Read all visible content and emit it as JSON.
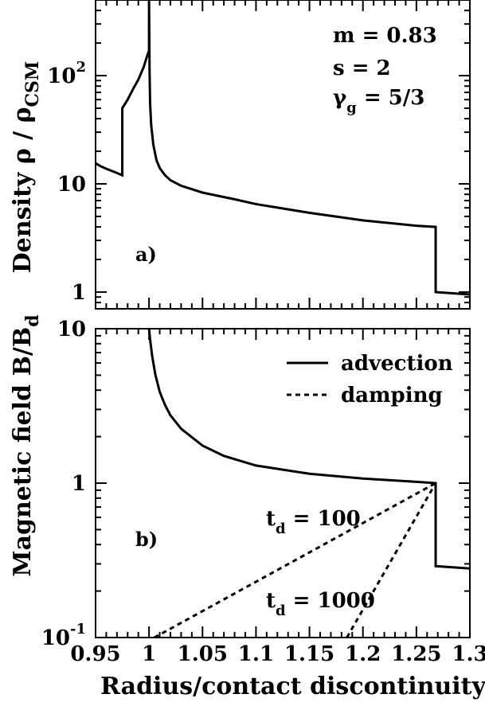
{
  "chart_data": [
    {
      "panel": "a",
      "type": "line",
      "ylabel_main": "Density ρ / ρ",
      "ylabel_sub": "CSM",
      "xlim": [
        0.95,
        1.3
      ],
      "ylim": [
        0.7,
        500
      ],
      "yscale": "log",
      "y_ticks": [
        {
          "value": 1,
          "base": "1",
          "exp": ""
        },
        {
          "value": 10,
          "base": "10",
          "exp": ""
        },
        {
          "value": 100,
          "base": "10",
          "exp": "2"
        }
      ],
      "annotations": {
        "m": "m = 0.83",
        "s": "s = 2",
        "gamma_base": "γ",
        "gamma_sub": "g",
        "gamma_rest": " = 5/3"
      },
      "panel_label": "a)",
      "series": [
        {
          "style": "solid",
          "points": [
            [
              0.95,
              15.5
            ],
            [
              0.955,
              14.5
            ],
            [
              0.96,
              13.8
            ],
            [
              0.965,
              13.2
            ],
            [
              0.97,
              12.6
            ],
            [
              0.975,
              12.0
            ],
            [
              0.975,
              50
            ],
            [
              0.98,
              60
            ],
            [
              0.985,
              75
            ],
            [
              0.99,
              92
            ],
            [
              0.995,
              120
            ],
            [
              0.998,
              150
            ],
            [
              1.0,
              170
            ],
            [
              1.0,
              500
            ],
            [
              1.0005,
              110
            ],
            [
              1.001,
              55
            ],
            [
              1.002,
              35
            ],
            [
              1.004,
              23
            ],
            [
              1.007,
              16.5
            ],
            [
              1.01,
              14
            ],
            [
              1.015,
              12
            ],
            [
              1.02,
              10.8
            ],
            [
              1.03,
              9.6
            ],
            [
              1.05,
              8.3
            ],
            [
              1.08,
              7.2
            ],
            [
              1.1,
              6.5
            ],
            [
              1.15,
              5.4
            ],
            [
              1.2,
              4.6
            ],
            [
              1.25,
              4.1
            ],
            [
              1.268,
              4.0
            ],
            [
              1.268,
              1.0
            ],
            [
              1.3,
              0.95
            ]
          ]
        }
      ]
    },
    {
      "panel": "b",
      "type": "line",
      "xlabel": "Radius/contact discontinuity",
      "ylabel_main": "Magnetic field B/B",
      "ylabel_sub": "d",
      "xlim": [
        0.95,
        1.3
      ],
      "ylim": [
        0.1,
        10
      ],
      "yscale": "log",
      "x_ticks": [
        "0.95",
        "1",
        "1.05",
        "1.1",
        "1.15",
        "1.2",
        "1.25",
        "1.3"
      ],
      "y_ticks": [
        {
          "value": 0.1,
          "base": "10",
          "exp": "-1"
        },
        {
          "value": 1,
          "base": "1",
          "exp": ""
        },
        {
          "value": 10,
          "base": "10",
          "exp": ""
        }
      ],
      "legend": {
        "advection": "advection",
        "damping": "damping"
      },
      "legend_placement": "top-right",
      "annotations": {
        "td100_base": "t",
        "td100_sub": "d",
        "td100_rest": " = 100",
        "td1000_base": "t",
        "td1000_sub": "d",
        "td1000_rest": " = 1000"
      },
      "panel_label": "b)",
      "series": [
        {
          "name": "advection",
          "style": "solid",
          "points": [
            [
              1.0,
              10
            ],
            [
              1.001,
              8.5
            ],
            [
              1.003,
              6.6
            ],
            [
              1.006,
              5.0
            ],
            [
              1.01,
              3.9
            ],
            [
              1.015,
              3.2
            ],
            [
              1.02,
              2.75
            ],
            [
              1.03,
              2.25
            ],
            [
              1.05,
              1.75
            ],
            [
              1.07,
              1.5
            ],
            [
              1.1,
              1.3
            ],
            [
              1.15,
              1.15
            ],
            [
              1.2,
              1.07
            ],
            [
              1.25,
              1.02
            ],
            [
              1.268,
              1.0
            ],
            [
              1.268,
              0.29
            ],
            [
              1.3,
              0.28
            ]
          ]
        },
        {
          "name": "damping",
          "label": "t_d = 100",
          "style": "dashed",
          "points": [
            [
              1.005,
              0.1
            ],
            [
              1.268,
              1.0
            ]
          ]
        },
        {
          "name": "damping",
          "label": "t_d = 1000",
          "style": "dashed",
          "points": [
            [
              1.185,
              0.1
            ],
            [
              1.268,
              1.0
            ]
          ]
        }
      ]
    }
  ]
}
